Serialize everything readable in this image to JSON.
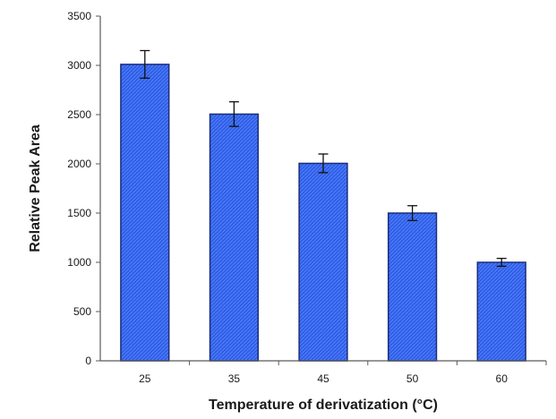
{
  "chart_data": {
    "type": "bar",
    "title": "",
    "xlabel": "Temperature of derivatization (°C)",
    "ylabel": "Relative Peak Area",
    "categories": [
      "25",
      "35",
      "45",
      "50",
      "60"
    ],
    "values": [
      3010,
      2505,
      2005,
      1500,
      1000
    ],
    "error": [
      140,
      125,
      95,
      75,
      40
    ],
    "ylim": [
      0,
      3500
    ],
    "yticks": [
      0,
      500,
      1000,
      1500,
      2000,
      2500,
      3000,
      3500
    ],
    "grid": false,
    "legend": "none",
    "bar_color": "#2f5fe6",
    "bar_edge_color": "#1a2e7a",
    "error_bar_color": "#111111"
  }
}
